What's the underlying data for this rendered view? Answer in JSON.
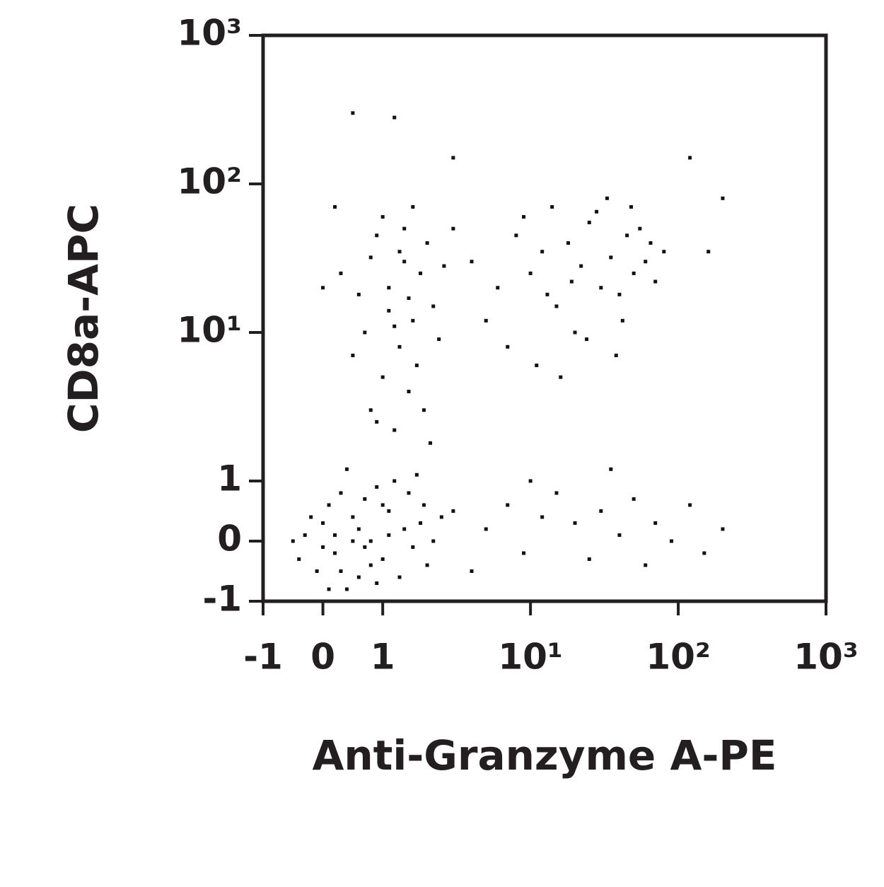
{
  "chart_data": {
    "type": "scatter",
    "x_label": "Anti-Granzyme A-PE",
    "y_label": "CD8a-APC",
    "xscale": "symlog",
    "yscale": "symlog",
    "color": "#111111",
    "xlim": [
      -1,
      1000
    ],
    "ylim": [
      -1,
      1000
    ],
    "xticks": [
      -1,
      0,
      1,
      {
        "value": 10,
        "label": "10¹"
      },
      {
        "value": 100,
        "label": "10²"
      },
      {
        "value": 1000,
        "label": "10³"
      }
    ],
    "yticks": [
      -1,
      0,
      1,
      {
        "value": 10,
        "label": "10¹"
      },
      {
        "value": 100,
        "label": "10²"
      },
      {
        "value": 1000,
        "label": "10³"
      }
    ],
    "x": [
      -0.3,
      0.0,
      0.2,
      0.5,
      0.8,
      1.1,
      1.4,
      0.3,
      -0.1,
      0.6,
      1.0,
      1.6,
      1.9,
      0.9,
      0.1,
      -0.4,
      0.4,
      0.7,
      1.2,
      1.8,
      2.2,
      0.2,
      0.5,
      0.8,
      1.3,
      -0.2,
      0.0,
      0.3,
      1.5,
      2.5,
      0.6,
      0.9,
      1.1,
      -0.5,
      0.4,
      1.7,
      2.0,
      0.1,
      0.7,
      1.0,
      0.8,
      1.0,
      1.3,
      1.6,
      1.1,
      1.4,
      0.9,
      1.8,
      2.2,
      1.2,
      0.7,
      1.5,
      2.0,
      1.0,
      1.7,
      0.6,
      1.3,
      2.4,
      1.9,
      1.1,
      0.5,
      2.6,
      1.4,
      0.9,
      1.6,
      0.3,
      2.1,
      1.2,
      0.8,
      1.5,
      4,
      6,
      8,
      10,
      12,
      15,
      18,
      22,
      25,
      30,
      35,
      40,
      45,
      50,
      60,
      70,
      5,
      7,
      9,
      14,
      20,
      28,
      33,
      42,
      55,
      65,
      3,
      11,
      16,
      24,
      38,
      48,
      80,
      13,
      19,
      3,
      5,
      7,
      9,
      12,
      15,
      20,
      25,
      30,
      40,
      50,
      60,
      70,
      90,
      120,
      150,
      4,
      10,
      35,
      200,
      0.5,
      1.2,
      0.2,
      0.0,
      3,
      120,
      200,
      160
    ],
    "y": [
      0.1,
      0.3,
      -0.2,
      0.4,
      0.0,
      0.5,
      0.2,
      0.8,
      -0.5,
      -0.6,
      -0.3,
      -0.1,
      0.6,
      0.9,
      0.6,
      -0.3,
      -0.8,
      0.7,
      1.0,
      0.3,
      0.0,
      0.1,
      0.0,
      -0.4,
      -0.6,
      0.4,
      -0.1,
      -0.5,
      0.8,
      0.4,
      0.2,
      -0.7,
      0.1,
      0.0,
      1.2,
      1.1,
      -0.4,
      -0.8,
      -0.1,
      0.6,
      3,
      5,
      8,
      12,
      20,
      30,
      45,
      25,
      15,
      2.2,
      10,
      4,
      40,
      60,
      6,
      18,
      35,
      9,
      3,
      14,
      7,
      28,
      50,
      2.5,
      70,
      25,
      1.8,
      11,
      32,
      17,
      30,
      20,
      45,
      25,
      35,
      15,
      40,
      28,
      55,
      20,
      32,
      18,
      45,
      25,
      30,
      22,
      12,
      8,
      60,
      70,
      10,
      65,
      80,
      12,
      50,
      40,
      50,
      6,
      5,
      9,
      7,
      70,
      35,
      18,
      22,
      0.5,
      0.2,
      0.6,
      -0.2,
      0.4,
      0.8,
      0.3,
      -0.3,
      0.5,
      0.1,
      0.7,
      -0.4,
      0.3,
      0.0,
      0.6,
      -0.2,
      -0.5,
      1.0,
      1.2,
      0.2,
      300,
      280,
      70,
      20,
      150,
      150,
      80,
      35
    ]
  }
}
